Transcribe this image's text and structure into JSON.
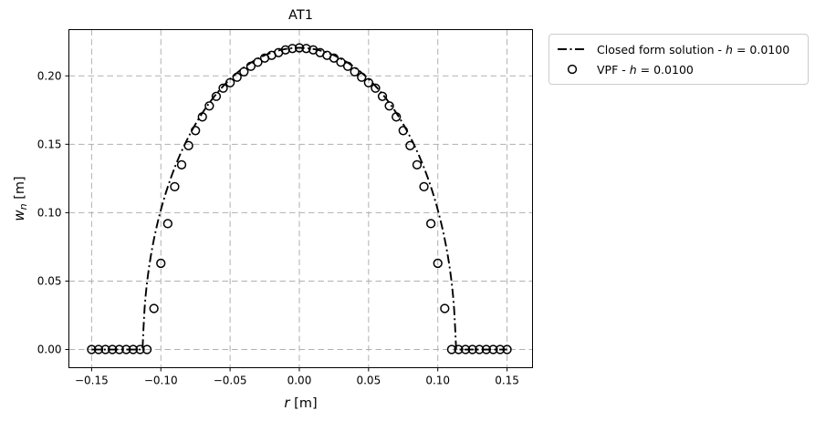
{
  "chart_data": {
    "type": "line+scatter",
    "title": "AT1",
    "xlabel": "r [m]",
    "ylabel": "w_n [m]",
    "xlabel_parts": {
      "var": "r",
      "unit": " [m]"
    },
    "ylabel_parts": {
      "var": "w",
      "sub": "n",
      "unit": " [m]"
    },
    "xlim": [
      -0.1664,
      0.1684
    ],
    "ylim": [
      -0.0133,
      0.2338
    ],
    "xticks": [
      -0.15,
      -0.1,
      -0.05,
      0.0,
      0.05,
      0.1,
      0.15
    ],
    "xtick_labels": [
      "−0.15",
      "−0.10",
      "−0.05",
      "0.00",
      "0.05",
      "0.10",
      "0.15"
    ],
    "yticks": [
      0.0,
      0.05,
      0.1,
      0.15,
      0.2
    ],
    "ytick_labels": [
      "0.00",
      "0.05",
      "0.10",
      "0.15",
      "0.20"
    ],
    "grid": true,
    "grid_style": "dashed",
    "grid_color": "#b0b0b0",
    "axis_color": "#000000",
    "legend_position": "outside-upper-right",
    "series": [
      {
        "name": "Closed form solution - h = 0.0100",
        "type": "line",
        "linestyle": "dashdot",
        "color": "#000000",
        "model": {
          "shape": "elliptical_crack_opening_profile",
          "crack_radius": 0.1128,
          "max_opening": 0.2205,
          "x_extent": [
            -0.15,
            0.15
          ]
        }
      },
      {
        "name": "VPF - h = 0.0100",
        "type": "scatter",
        "marker": "open-circle",
        "color": "#000000",
        "x": [
          -0.15,
          -0.145,
          -0.14,
          -0.135,
          -0.13,
          -0.125,
          -0.12,
          -0.115,
          -0.11,
          -0.105,
          -0.1,
          -0.095,
          -0.09,
          -0.085,
          -0.08,
          -0.075,
          -0.07,
          -0.065,
          -0.06,
          -0.055,
          -0.05,
          -0.045,
          -0.04,
          -0.035,
          -0.03,
          -0.025,
          -0.02,
          -0.015,
          -0.01,
          -0.005,
          0,
          0.005,
          0.01,
          0.015,
          0.02,
          0.025,
          0.03,
          0.035,
          0.04,
          0.045,
          0.05,
          0.055,
          0.06,
          0.065,
          0.07,
          0.075,
          0.08,
          0.085,
          0.09,
          0.095,
          0.1,
          0.105,
          0.11,
          0.115,
          0.12,
          0.125,
          0.13,
          0.135,
          0.14,
          0.145,
          0.15
        ],
        "y": [
          0,
          0,
          0,
          0,
          0,
          0,
          0,
          0,
          0,
          0.03,
          0.063,
          0.092,
          0.119,
          0.135,
          0.149,
          0.16,
          0.17,
          0.178,
          0.185,
          0.191,
          0.195,
          0.199,
          0.203,
          0.207,
          0.21,
          0.213,
          0.215,
          0.217,
          0.219,
          0.22,
          0.2205,
          0.22,
          0.219,
          0.217,
          0.215,
          0.213,
          0.21,
          0.207,
          0.203,
          0.199,
          0.195,
          0.191,
          0.185,
          0.178,
          0.17,
          0.16,
          0.149,
          0.135,
          0.119,
          0.092,
          0.063,
          0.03,
          0,
          0,
          0,
          0,
          0,
          0,
          0,
          0,
          0
        ]
      }
    ]
  },
  "legend": {
    "entries": [
      {
        "marker": "dashdot-line",
        "prefix": "Closed form solution - ",
        "var": "h",
        "suffix": " = 0.0100"
      },
      {
        "marker": "open-circle",
        "prefix": "VPF - ",
        "var": "h",
        "suffix": " = 0.0100"
      }
    ]
  }
}
